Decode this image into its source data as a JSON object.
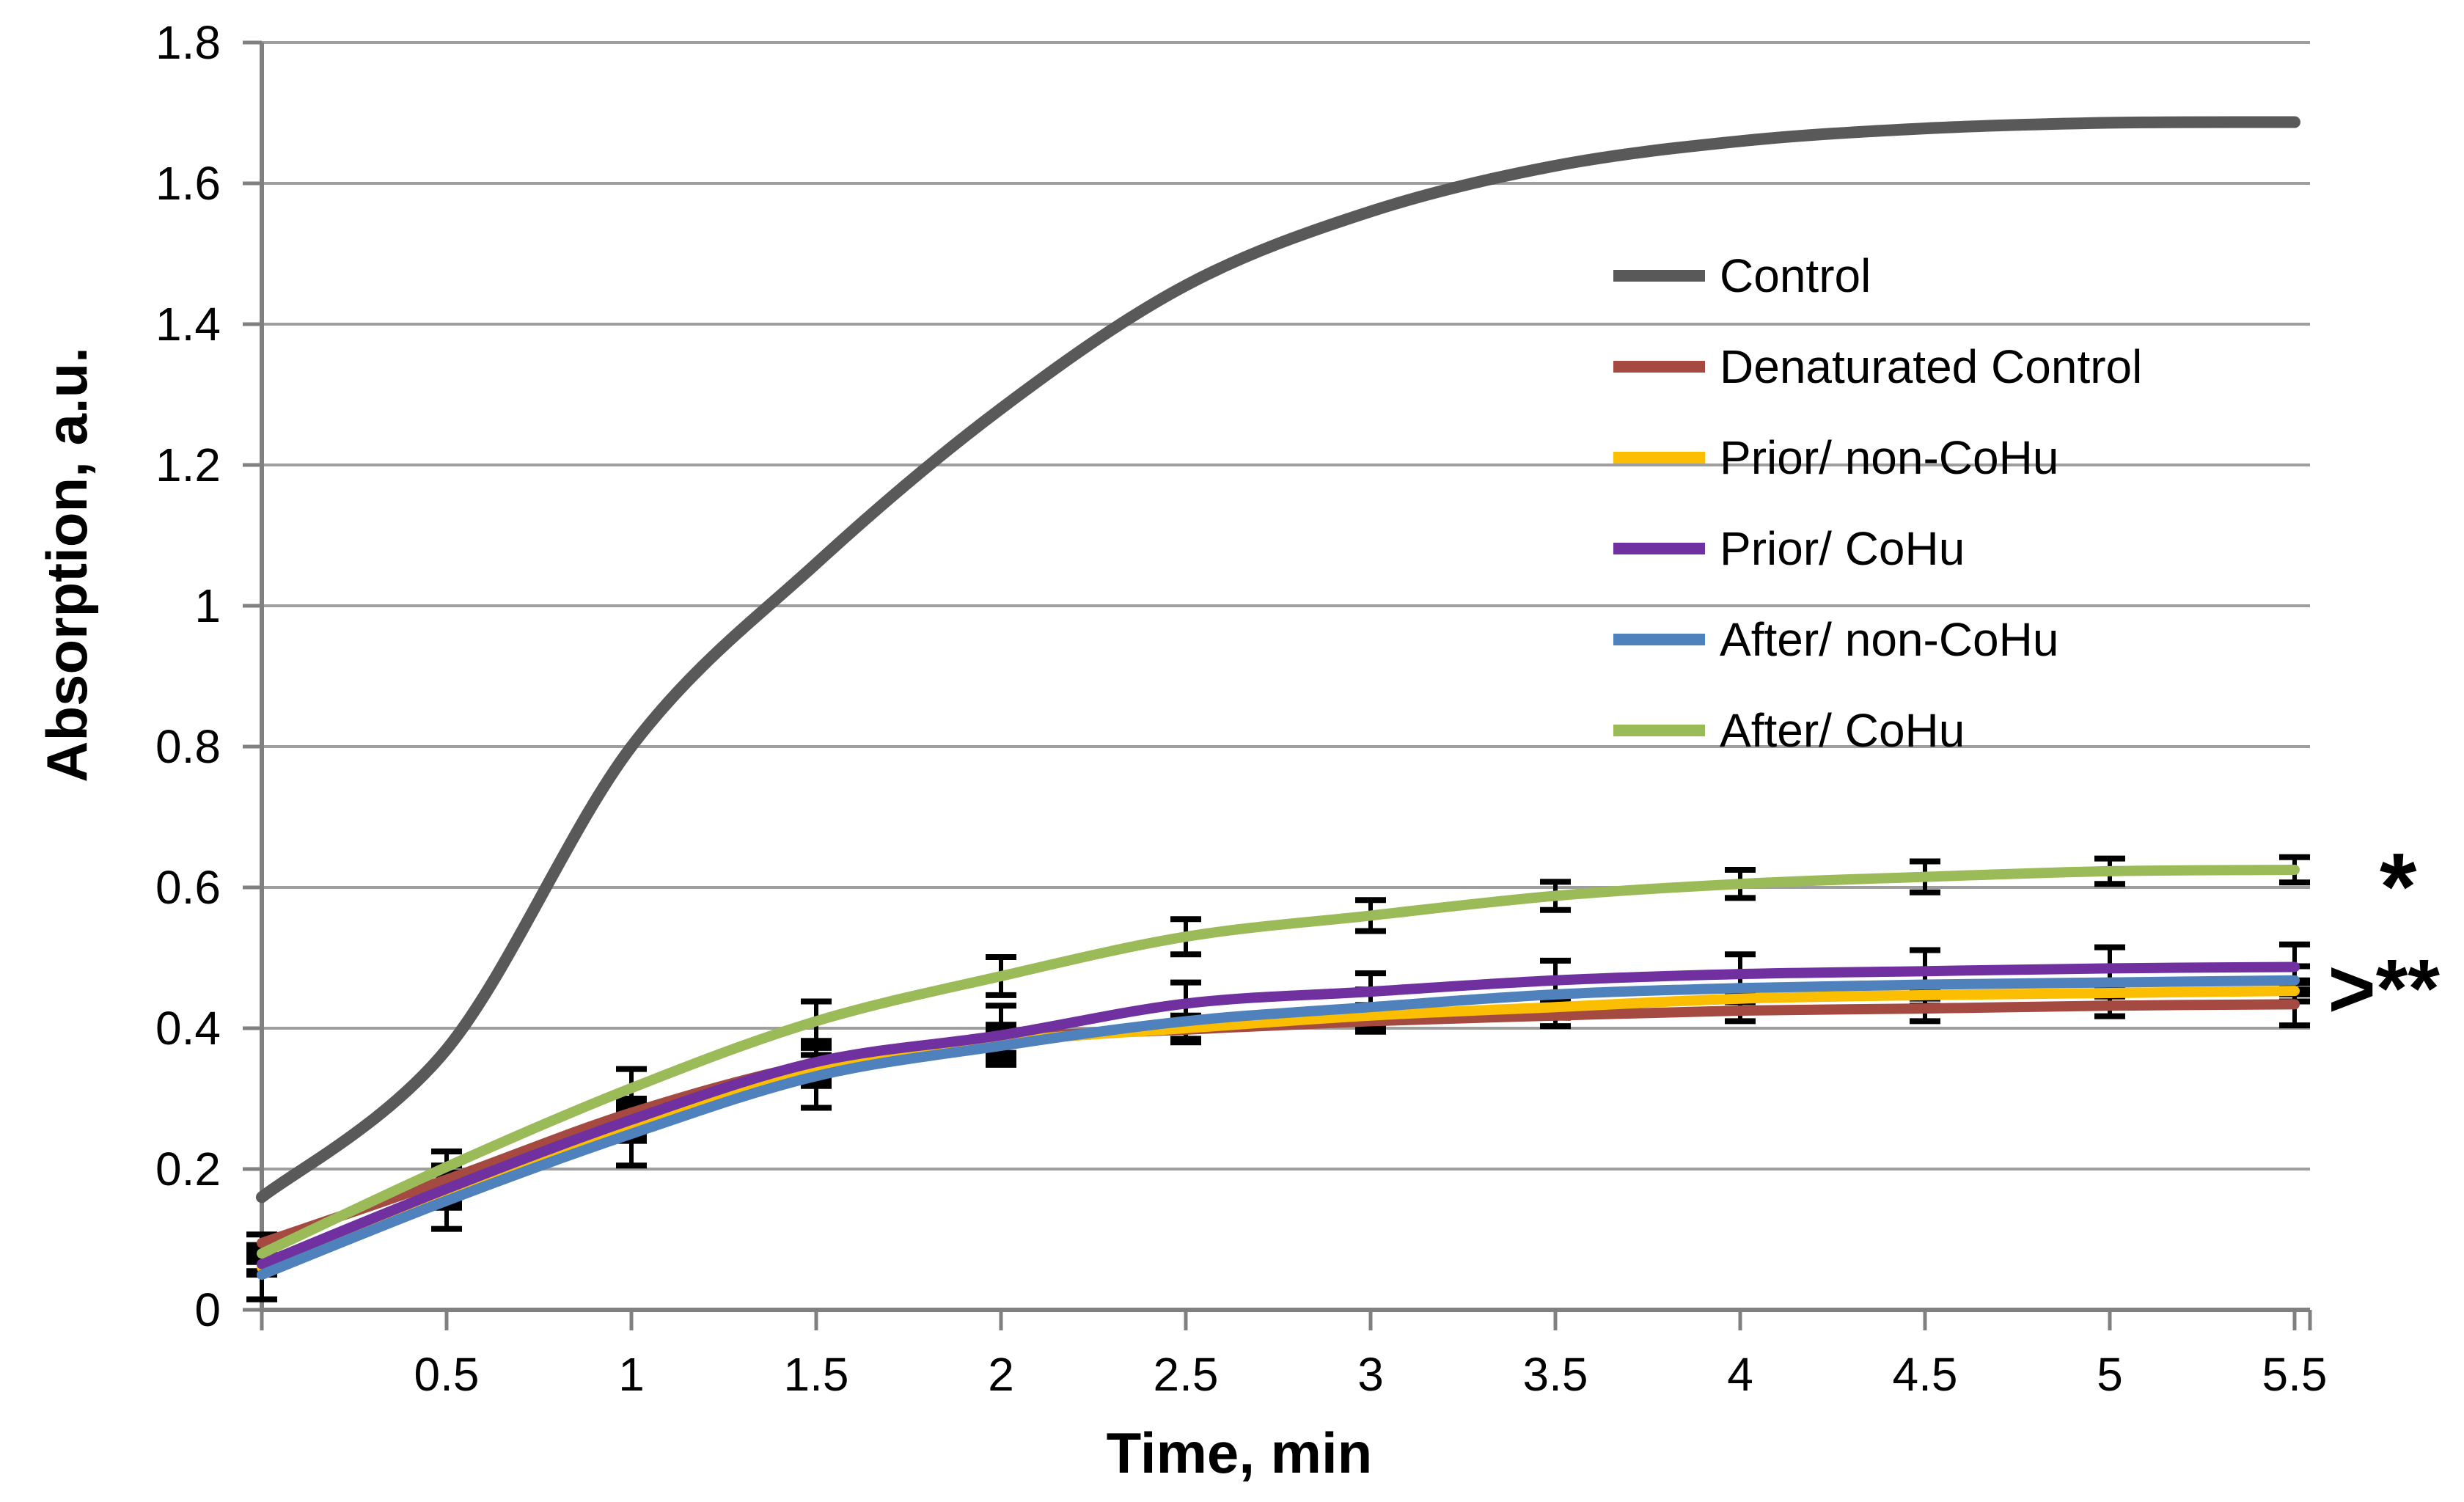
{
  "chart_data": {
    "type": "line",
    "title": "",
    "xlabel": "Time, min",
    "ylabel": "Absorption, a.u.",
    "grid": "horizontal",
    "legend_position": "right-upper-inside",
    "ylim": [
      0,
      1.8
    ],
    "xlim_ticks": [
      0.5,
      5.5
    ],
    "y_tick_labels": [
      "0",
      "0.2",
      "0.4",
      "0.6",
      "0.8",
      "1",
      "1.2",
      "1.4",
      "1.6",
      "1.8"
    ],
    "x_tick_labels": [
      "0.5",
      "1",
      "1.5",
      "2",
      "2.5",
      "3",
      "3.5",
      "4",
      "4.5",
      "5",
      "5.5"
    ],
    "x": [
      0,
      0.5,
      1,
      1.5,
      2,
      2.5,
      3,
      3.5,
      4,
      4.5,
      5,
      5.5
    ],
    "series": [
      {
        "name": "Control",
        "color": "#595959",
        "line_width": 16,
        "values": [
          0.16,
          0.37,
          0.8,
          1.06,
          1.28,
          1.455,
          1.56,
          1.625,
          1.66,
          1.678,
          1.686,
          1.687
        ],
        "errors": null
      },
      {
        "name": "Denaturated Control",
        "color": "#A44A40",
        "line_width": 14,
        "values": [
          0.095,
          0.185,
          0.28,
          0.35,
          0.385,
          0.398,
          0.41,
          0.418,
          0.425,
          0.428,
          0.432,
          0.434
        ],
        "errors": [
          0.012,
          0.02,
          0.02,
          0.022,
          0.02,
          0.018,
          0.015,
          0.015,
          0.015,
          0.018,
          0.015,
          0.03
        ]
      },
      {
        "name": "Prior/ non-CoHu",
        "color": "#FCBE00",
        "line_width": 14,
        "values": [
          0.06,
          0.163,
          0.26,
          0.34,
          0.38,
          0.4,
          0.418,
          0.43,
          0.442,
          0.447,
          0.45,
          0.453
        ],
        "errors": [
          0.01,
          0.018,
          0.02,
          0.022,
          0.02,
          0.018,
          0.015,
          0.015,
          0.015,
          0.015,
          0.015,
          0.015
        ]
      },
      {
        "name": "Prior/ CoHu",
        "color": "#7030A0",
        "line_width": 14,
        "values": [
          0.065,
          0.172,
          0.27,
          0.352,
          0.39,
          0.435,
          0.452,
          0.468,
          0.477,
          0.481,
          0.485,
          0.487
        ],
        "errors": [
          0.01,
          0.02,
          0.022,
          0.026,
          0.042,
          0.03,
          0.026,
          0.028,
          0.028,
          0.03,
          0.03,
          0.032
        ]
      },
      {
        "name": "After/ non-CoHu",
        "color": "#4F81BD",
        "line_width": 14,
        "values": [
          0.05,
          0.155,
          0.25,
          0.332,
          0.375,
          0.41,
          0.43,
          0.448,
          0.457,
          0.462,
          0.465,
          0.468
        ],
        "errors": [
          0.035,
          0.04,
          0.045,
          0.045,
          0.022,
          0.025,
          0.025,
          0.02,
          0.02,
          0.02,
          0.02,
          0.02
        ]
      },
      {
        "name": "After/ CoHu",
        "color": "#9BBB59",
        "line_width": 14,
        "values": [
          0.08,
          0.203,
          0.315,
          0.41,
          0.474,
          0.53,
          0.56,
          0.588,
          0.605,
          0.615,
          0.623,
          0.625
        ],
        "errors": [
          0.012,
          0.022,
          0.027,
          0.028,
          0.027,
          0.025,
          0.022,
          0.02,
          0.02,
          0.022,
          0.018,
          0.018
        ]
      }
    ],
    "annotations": [
      {
        "text": "*",
        "t": 5.73,
        "v": 0.625,
        "font": 130
      },
      {
        "text": ">**",
        "t": 5.59,
        "v": 0.458,
        "font": 112
      }
    ]
  }
}
